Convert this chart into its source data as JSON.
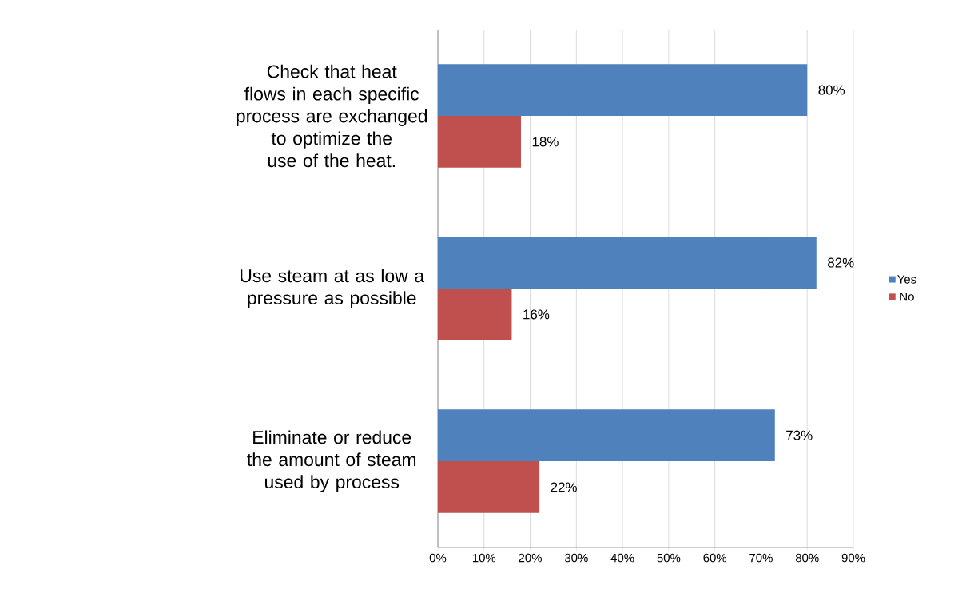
{
  "chart_data": {
    "type": "bar",
    "orientation": "horizontal",
    "categories": [
      "Check that heat flows in each specific process are exchanged to optimize the use of the heat.",
      "Use steam at as low a pressure as possible",
      "Eliminate or reduce the amount of steam used by process"
    ],
    "series": [
      {
        "name": "Yes",
        "color": "#4f81bd",
        "values": [
          80,
          82,
          73
        ],
        "value_labels": [
          "80%",
          "82%",
          "73%"
        ]
      },
      {
        "name": "No",
        "color": "#c0504d",
        "values": [
          18,
          16,
          22
        ],
        "value_labels": [
          "18%",
          "16%",
          "22%"
        ]
      }
    ],
    "xlim": [
      0,
      90
    ],
    "xticks": [
      {
        "value": 0,
        "label": "0%"
      },
      {
        "value": 10,
        "label": "10%"
      },
      {
        "value": 20,
        "label": "20%"
      },
      {
        "value": 30,
        "label": "30%"
      },
      {
        "value": 40,
        "label": "40%"
      },
      {
        "value": 50,
        "label": "50%"
      },
      {
        "value": 60,
        "label": "60%"
      },
      {
        "value": 70,
        "label": "70%"
      },
      {
        "value": 80,
        "label": "80%"
      },
      {
        "value": 90,
        "label": "90%"
      }
    ],
    "grid": "x",
    "legend": "right"
  }
}
